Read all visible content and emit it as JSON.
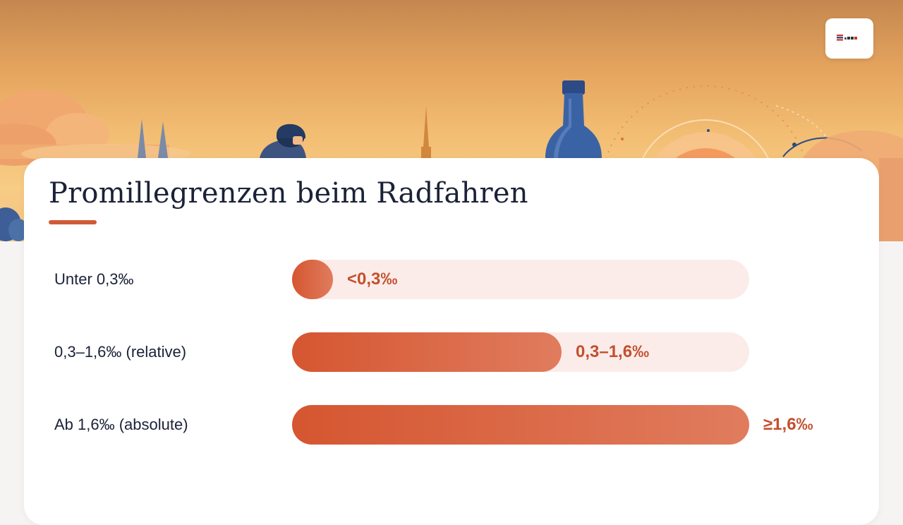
{
  "title": "Promillegrenzen beim Radfahren",
  "colors": {
    "accent": "#cf5a37",
    "bar_start": "#d55630",
    "bar_end": "#e07c5e",
    "track": "#fbecea",
    "value_text": "#c2502d",
    "label_text": "#1b2238"
  },
  "logo": {
    "icon": "logo-icon"
  },
  "hero": {
    "icons": [
      "cathedral-spires-icon",
      "cyclist-icon",
      "tower-icon",
      "bottle-icon",
      "sun-icon"
    ]
  },
  "chart_data": {
    "type": "bar",
    "orientation": "horizontal",
    "categories": [
      "Unter 0,3‰",
      "0,3–1,6‰ (relative)",
      "Ab 1,6‰ (absolute)"
    ],
    "value_labels": [
      "<0,3‰",
      "0,3–1,6‰",
      "≥1,6‰"
    ],
    "values": [
      0.3,
      1.0,
      1.6
    ],
    "fill_fraction": [
      0.09,
      0.59,
      1.0
    ],
    "title": "Promillegrenzen beim Radfahren",
    "xlabel": "",
    "ylabel": "",
    "grid": false
  }
}
